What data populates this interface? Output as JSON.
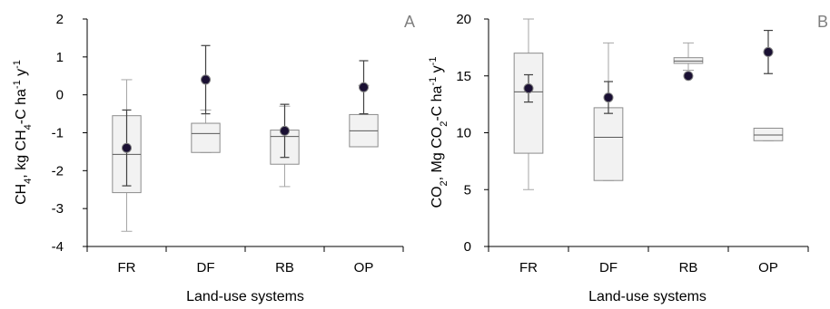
{
  "chart_data": [
    {
      "type": "boxplot",
      "panel_label": "A",
      "ylabel": "CH4, kg CH4-C ha-1 y-1",
      "ylabel_parts": {
        "a": "CH",
        "b": "4",
        "c": ", kg CH",
        "d": "4",
        "e": "-C ha",
        "f": "-1",
        "g": " y",
        "h": "-1"
      },
      "xlabel": "Land-use systems",
      "ylim": [
        -4,
        2
      ],
      "yticks": [
        "2",
        "1",
        "0",
        "-1",
        "-2",
        "-3",
        "-4"
      ],
      "ytick_values": [
        2,
        1,
        0,
        -1,
        -2,
        -3,
        -4
      ],
      "categories": [
        "FR",
        "DF",
        "RB",
        "OP"
      ],
      "boxes": [
        {
          "category": "FR",
          "min": -3.6,
          "q1": -2.58,
          "median": -1.57,
          "q3": -0.55,
          "max": 0.4
        },
        {
          "category": "DF",
          "min": -1.52,
          "q1": -1.52,
          "median": -1.02,
          "q3": -0.75,
          "max": -0.4
        },
        {
          "category": "RB",
          "min": -2.42,
          "q1": -1.83,
          "median": -1.1,
          "q3": -0.93,
          "max": -0.3
        },
        {
          "category": "OP",
          "min": -1.37,
          "q1": -1.37,
          "median": -0.95,
          "q3": -0.52,
          "max": 0.25
        }
      ],
      "points": [
        {
          "category": "FR",
          "mean": -1.4,
          "err_low": -2.4,
          "err_high": -0.4
        },
        {
          "category": "DF",
          "mean": 0.4,
          "err_low": -0.5,
          "err_high": 1.3
        },
        {
          "category": "RB",
          "mean": -0.95,
          "err_low": -1.65,
          "err_high": -0.25
        },
        {
          "category": "OP",
          "mean": 0.2,
          "err_low": -0.5,
          "err_high": 0.9
        }
      ],
      "grid": false
    },
    {
      "type": "boxplot",
      "panel_label": "B",
      "ylabel": "CO2, Mg CO2-C ha-1 y-1",
      "ylabel_parts": {
        "a": "CO",
        "b": "2",
        "c": ", Mg CO",
        "d": "2",
        "e": "-C ha",
        "f": "-1",
        "g": " y",
        "h": "-1"
      },
      "xlabel": "Land-use systems",
      "ylim": [
        0,
        20
      ],
      "yticks": [
        "20",
        "15",
        "10",
        "5",
        "0"
      ],
      "ytick_values": [
        20,
        15,
        10,
        5,
        0
      ],
      "categories": [
        "FR",
        "DF",
        "RB",
        "OP"
      ],
      "boxes": [
        {
          "category": "FR",
          "min": 5.0,
          "q1": 8.2,
          "median": 13.6,
          "q3": 17.0,
          "max": 20.0
        },
        {
          "category": "DF",
          "min": 5.8,
          "q1": 5.8,
          "median": 9.6,
          "q3": 12.2,
          "max": 17.9
        },
        {
          "category": "RB",
          "min": 15.5,
          "q1": 16.1,
          "median": 16.3,
          "q3": 16.6,
          "max": 17.9
        },
        {
          "category": "OP",
          "min": 9.3,
          "q1": 9.3,
          "median": 9.8,
          "q3": 10.4,
          "max": 10.4
        }
      ],
      "points": [
        {
          "category": "FR",
          "mean": 13.9,
          "err_low": 12.7,
          "err_high": 15.1
        },
        {
          "category": "DF",
          "mean": 13.1,
          "err_low": 11.7,
          "err_high": 14.5
        },
        {
          "category": "RB",
          "mean": 15.0,
          "err_low": 15.0,
          "err_high": 15.0
        },
        {
          "category": "OP",
          "mean": 17.1,
          "err_low": 15.2,
          "err_high": 19.0
        }
      ],
      "grid": false
    }
  ],
  "colors": {
    "box_fill": "#f2f2f2",
    "box_stroke": "#8c8c8c",
    "whisker": "#a6a6a6",
    "point_fill": "#1a1033",
    "point_stroke": "#7f7f7f",
    "axis": "#000000"
  }
}
